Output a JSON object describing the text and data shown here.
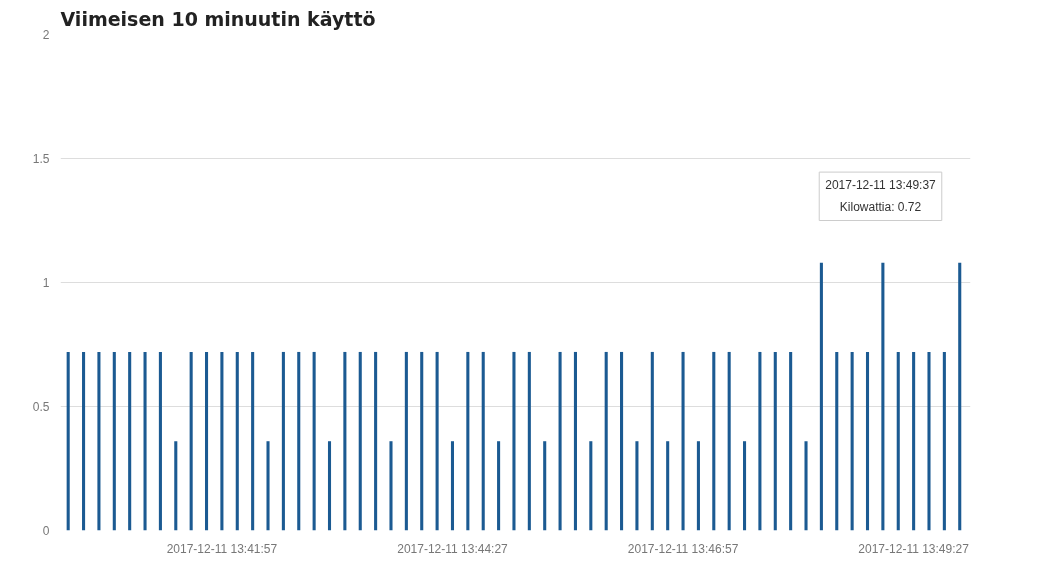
{
  "chart_data": {
    "type": "bar",
    "title": "Viimeisen 10 minuutin käyttö",
    "x": [
      "2017-12-11T13:40:17",
      "2017-12-11T13:40:27",
      "2017-12-11T13:40:37",
      "2017-12-11T13:40:47",
      "2017-12-11T13:40:57",
      "2017-12-11T13:41:07",
      "2017-12-11T13:41:17",
      "2017-12-11T13:41:27",
      "2017-12-11T13:41:37",
      "2017-12-11T13:41:47",
      "2017-12-11T13:41:57",
      "2017-12-11T13:42:07",
      "2017-12-11T13:42:17",
      "2017-12-11T13:42:27",
      "2017-12-11T13:42:37",
      "2017-12-11T13:42:47",
      "2017-12-11T13:42:57",
      "2017-12-11T13:43:07",
      "2017-12-11T13:43:17",
      "2017-12-11T13:43:27",
      "2017-12-11T13:43:37",
      "2017-12-11T13:43:47",
      "2017-12-11T13:43:57",
      "2017-12-11T13:44:07",
      "2017-12-11T13:44:17",
      "2017-12-11T13:44:27",
      "2017-12-11T13:44:37",
      "2017-12-11T13:44:47",
      "2017-12-11T13:44:57",
      "2017-12-11T13:45:07",
      "2017-12-11T13:45:17",
      "2017-12-11T13:45:27",
      "2017-12-11T13:45:37",
      "2017-12-11T13:45:47",
      "2017-12-11T13:45:57",
      "2017-12-11T13:46:07",
      "2017-12-11T13:46:17",
      "2017-12-11T13:46:27",
      "2017-12-11T13:46:37",
      "2017-12-11T13:46:47",
      "2017-12-11T13:46:57",
      "2017-12-11T13:47:07",
      "2017-12-11T13:47:17",
      "2017-12-11T13:47:27",
      "2017-12-11T13:47:37",
      "2017-12-11T13:47:47",
      "2017-12-11T13:47:57",
      "2017-12-11T13:48:07",
      "2017-12-11T13:48:17",
      "2017-12-11T13:48:27",
      "2017-12-11T13:48:37",
      "2017-12-11T13:48:47",
      "2017-12-11T13:48:57",
      "2017-12-11T13:49:07",
      "2017-12-11T13:49:17",
      "2017-12-11T13:49:27",
      "2017-12-11T13:49:37",
      "2017-12-11T13:49:47",
      "2017-12-11T13:49:57"
    ],
    "values": [
      0.72,
      0.72,
      0.72,
      0.72,
      0.72,
      0.72,
      0.72,
      0.36,
      0.72,
      0.72,
      0.72,
      0.72,
      0.72,
      0.36,
      0.72,
      0.72,
      0.72,
      0.36,
      0.72,
      0.72,
      0.72,
      0.36,
      0.72,
      0.72,
      0.72,
      0.36,
      0.72,
      0.72,
      0.36,
      0.72,
      0.72,
      0.36,
      0.72,
      0.72,
      0.36,
      0.72,
      0.72,
      0.36,
      0.72,
      0.36,
      0.72,
      0.36,
      0.72,
      0.72,
      0.36,
      0.72,
      0.72,
      0.72,
      0.36,
      1.08,
      0.72,
      0.72,
      0.72,
      1.08,
      0.72,
      0.72,
      0.72,
      0.72,
      1.08
    ],
    "color": "#1b5a92",
    "xlim": [
      "2017-12-11T13:40:12",
      "2017-12-11T13:50:04"
    ],
    "xticks": [
      {
        "value": "2017-12-11T13:41:57",
        "label": "2017-12-11 13:41:57"
      },
      {
        "value": "2017-12-11T13:44:27",
        "label": "2017-12-11 13:44:27"
      },
      {
        "value": "2017-12-11T13:46:57",
        "label": "2017-12-11 13:46:57"
      },
      {
        "value": "2017-12-11T13:49:27",
        "label": "2017-12-11 13:49:27"
      }
    ],
    "ylim": [
      0,
      2
    ],
    "yticks": [
      0,
      0.5,
      1,
      1.5,
      2
    ],
    "grid": "y",
    "annotations": [
      "2017-12-11 13:49:37\nKilowattia: 0.72"
    ]
  }
}
